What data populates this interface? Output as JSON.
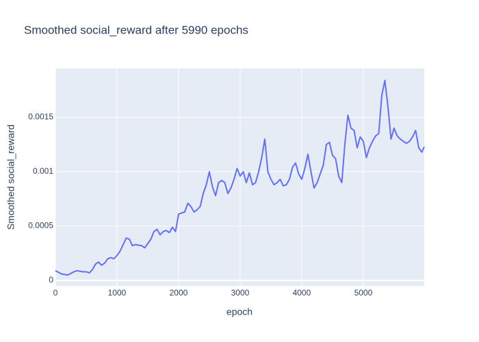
{
  "chart_data": {
    "type": "line",
    "title": "Smoothed social_reward after 5990 epochs",
    "x_label": "epoch",
    "y_label": "Smoothed social_reward",
    "color": "#636efa",
    "grid": true,
    "xlim": [
      0,
      5990
    ],
    "xticks": [
      0,
      1000,
      2000,
      3000,
      4000,
      5000
    ],
    "ylim": [
      -5e-05,
      0.00195
    ],
    "yticks": [
      0,
      0.0005,
      0.001,
      0.0015
    ],
    "x": [
      0,
      100,
      200,
      300,
      350,
      450,
      500,
      550,
      600,
      650,
      700,
      750,
      800,
      850,
      900,
      950,
      1000,
      1050,
      1100,
      1150,
      1200,
      1250,
      1300,
      1400,
      1450,
      1500,
      1550,
      1600,
      1650,
      1700,
      1750,
      1800,
      1850,
      1900,
      1950,
      2000,
      2050,
      2100,
      2150,
      2200,
      2250,
      2300,
      2350,
      2400,
      2450,
      2500,
      2550,
      2600,
      2650,
      2700,
      2750,
      2800,
      2850,
      2900,
      2950,
      3000,
      3050,
      3100,
      3150,
      3200,
      3250,
      3300,
      3350,
      3400,
      3450,
      3500,
      3550,
      3600,
      3650,
      3700,
      3750,
      3800,
      3850,
      3900,
      3950,
      4000,
      4050,
      4100,
      4150,
      4200,
      4250,
      4300,
      4350,
      4400,
      4450,
      4500,
      4550,
      4600,
      4650,
      4700,
      4750,
      4800,
      4850,
      4900,
      4950,
      5000,
      5050,
      5100,
      5150,
      5200,
      5250,
      5300,
      5350,
      5400,
      5450,
      5500,
      5550,
      5600,
      5650,
      5700,
      5750,
      5800,
      5850,
      5900,
      5950,
      5990
    ],
    "values": [
      9e-05,
      6e-05,
      5e-05,
      8e-05,
      9e-05,
      8e-05,
      8e-05,
      7e-05,
      0.0001,
      0.00015,
      0.00017,
      0.00014,
      0.00016,
      0.0002,
      0.00021,
      0.0002,
      0.00023,
      0.00027,
      0.00033,
      0.00039,
      0.00038,
      0.00032,
      0.00033,
      0.00032,
      0.0003,
      0.00034,
      0.00038,
      0.00045,
      0.00047,
      0.00042,
      0.00045,
      0.00046,
      0.00044,
      0.00049,
      0.00045,
      0.00061,
      0.00062,
      0.00063,
      0.00071,
      0.00068,
      0.00063,
      0.00065,
      0.00068,
      0.0008,
      0.00088,
      0.001,
      0.00086,
      0.00078,
      0.0009,
      0.00092,
      0.0009,
      0.0008,
      0.00085,
      0.00093,
      0.00103,
      0.00096,
      0.001,
      0.0009,
      0.00099,
      0.00088,
      0.0009,
      0.001,
      0.00113,
      0.0013,
      0.001,
      0.00093,
      0.00088,
      0.0009,
      0.00093,
      0.00087,
      0.00088,
      0.00093,
      0.00104,
      0.00108,
      0.00098,
      0.00093,
      0.00103,
      0.00116,
      0.001,
      0.00085,
      0.0009,
      0.00098,
      0.00106,
      0.00125,
      0.00127,
      0.00115,
      0.00112,
      0.00096,
      0.0009,
      0.00125,
      0.00152,
      0.0014,
      0.00138,
      0.00122,
      0.00132,
      0.00128,
      0.00113,
      0.00122,
      0.00128,
      0.00133,
      0.00135,
      0.0017,
      0.00184,
      0.0016,
      0.0013,
      0.0014,
      0.00133,
      0.0013,
      0.00128,
      0.00126,
      0.00128,
      0.00132,
      0.00138,
      0.00122,
      0.00118,
      0.00123
    ]
  }
}
